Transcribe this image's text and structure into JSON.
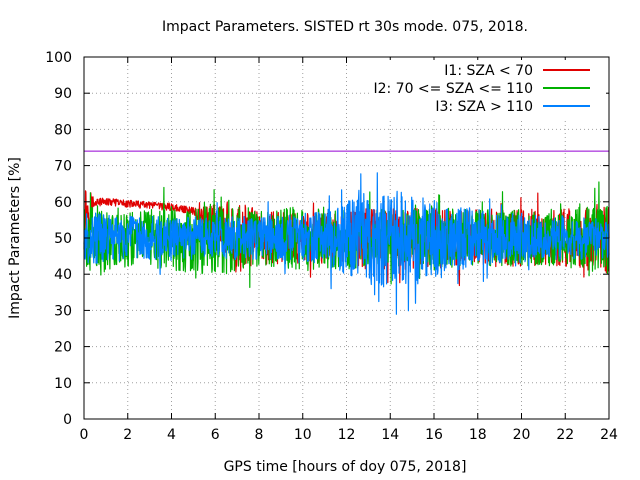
{
  "chart_data": {
    "type": "line",
    "title": "Impact Parameters. SISTED rt 30s mode. 075, 2018.",
    "xlabel": "GPS time [hours of doy 075, 2018]",
    "ylabel": "Impact Parameters [%]",
    "xlim": [
      0,
      24
    ],
    "ylim": [
      0,
      100
    ],
    "xticks": [
      0,
      2,
      4,
      6,
      8,
      10,
      12,
      14,
      16,
      18,
      20,
      22,
      24
    ],
    "yticks": [
      0,
      10,
      20,
      30,
      40,
      50,
      60,
      70,
      80,
      90,
      100
    ],
    "grid": true,
    "legend_position": "top-right",
    "reference_line": {
      "value": 74,
      "color": "#9400d3"
    },
    "series": [
      {
        "name": "I1: SZA < 70",
        "color": "#e00000",
        "x": [
          0,
          0.5,
          1,
          2,
          3,
          4,
          5,
          6,
          7,
          8,
          9,
          10,
          11,
          12,
          13,
          14,
          15,
          16,
          17,
          18,
          19,
          20,
          21,
          22,
          23,
          24
        ],
        "mean": [
          57,
          60,
          60,
          59.5,
          59,
          58.5,
          57.5,
          54,
          50,
          50,
          50,
          50,
          50,
          50,
          50,
          50,
          50,
          50,
          50,
          50,
          50,
          50,
          50,
          50,
          50,
          50
        ],
        "spread": [
          10,
          1,
          1,
          1,
          1,
          1,
          1,
          6,
          10,
          8,
          7,
          7,
          7,
          8,
          9,
          9,
          9,
          9,
          8,
          8,
          8,
          8,
          8,
          8,
          9,
          10
        ],
        "min_value": 34,
        "max_value": 63
      },
      {
        "name": "I2: 70 <= SZA <= 110",
        "color": "#00b000",
        "x": [
          0,
          1,
          2,
          3,
          4,
          5,
          6,
          7,
          8,
          9,
          10,
          11,
          12,
          13,
          14,
          15,
          16,
          17,
          18,
          19,
          20,
          21,
          22,
          23,
          24
        ],
        "mean": [
          50,
          50,
          50,
          50,
          50,
          50,
          50,
          50,
          50,
          50,
          50,
          50,
          50,
          50,
          50,
          50,
          50,
          50,
          50,
          50,
          50,
          50,
          50,
          50,
          50
        ],
        "spread": [
          9,
          9,
          8,
          8,
          9,
          10,
          10,
          9,
          8,
          8,
          9,
          9,
          9,
          8,
          8,
          8,
          9,
          9,
          8,
          8,
          8,
          8,
          8,
          9,
          10
        ],
        "min_value": 36,
        "max_value": 66
      },
      {
        "name": "I3: SZA > 110",
        "color": "#0080ff",
        "x": [
          0,
          1,
          2,
          3,
          4,
          5,
          6,
          7,
          8,
          9,
          10,
          11,
          12,
          13,
          14,
          15,
          16,
          17,
          18,
          19,
          20,
          21,
          22,
          23,
          24
        ],
        "mean": [
          50,
          50,
          50,
          50,
          50,
          50,
          50,
          50,
          50,
          50,
          50,
          50,
          50,
          50,
          50,
          50,
          50,
          50,
          50,
          50,
          50,
          50,
          50,
          50,
          50
        ],
        "spread": [
          7,
          7,
          6,
          6,
          6,
          6,
          6,
          6,
          6,
          6,
          7,
          8,
          10,
          13,
          14,
          12,
          11,
          9,
          8,
          7,
          7,
          6,
          6,
          6,
          6
        ],
        "min_value": 25,
        "max_value": 68
      }
    ]
  }
}
